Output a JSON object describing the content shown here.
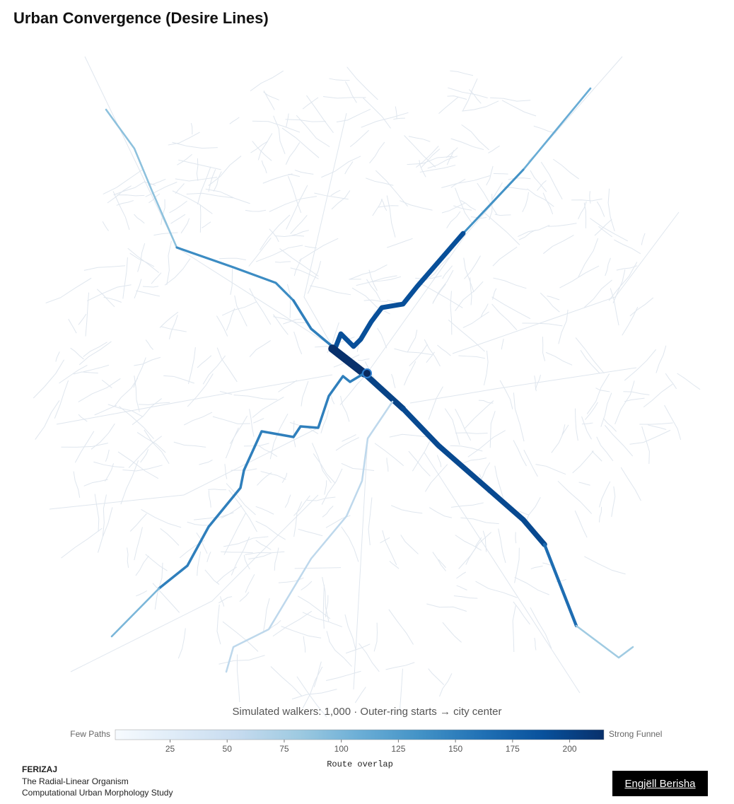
{
  "title": "Urban Convergence (Desire Lines)",
  "map": {
    "subtitle": "Simulated walkers: 1,000 · Outer-ring starts → city center",
    "route_overlap": [
      90,
      140,
      150,
      110,
      135,
      190,
      215,
      200,
      195,
      165,
      80,
      150,
      100,
      60
    ]
  },
  "legend": {
    "left_label": "Few Paths",
    "right_label": "Strong Funnel",
    "axis_label": "Route overlap",
    "range": [
      1,
      215
    ],
    "ticks": [
      25,
      50,
      75,
      100,
      125,
      150,
      175,
      200
    ],
    "colorscale": [
      "#f7fbff",
      "#deebf7",
      "#c6dbef",
      "#9ecae1",
      "#6baed6",
      "#4292c6",
      "#2171b5",
      "#08519c",
      "#08306b"
    ]
  },
  "footer": {
    "place": "FERIZAJ",
    "line1": "The Radial-Linear Organism",
    "line2": "Computational Urban Morphology Study",
    "author": "Engjëll Berisha"
  }
}
